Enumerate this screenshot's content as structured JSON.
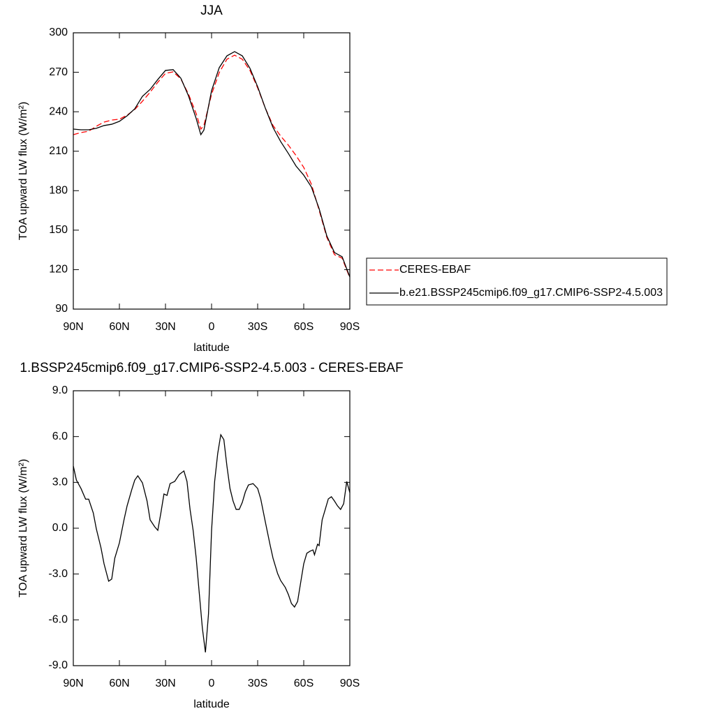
{
  "chart_data": [
    {
      "type": "line",
      "title": "JJA",
      "xlabel": "latitude",
      "ylabel": "TOA upward LW flux (W/m²)",
      "xlim": [
        90,
        -90
      ],
      "xticks": [
        {
          "value": 90,
          "label": "90N"
        },
        {
          "value": 60,
          "label": "60N"
        },
        {
          "value": 30,
          "label": "30N"
        },
        {
          "value": 0,
          "label": "0"
        },
        {
          "value": -30,
          "label": "30S"
        },
        {
          "value": -60,
          "label": "60S"
        },
        {
          "value": -90,
          "label": "90S"
        }
      ],
      "ylim": [
        90,
        300
      ],
      "yticks": [
        90,
        120,
        150,
        180,
        210,
        240,
        270,
        300
      ],
      "legend": "right",
      "x": [
        90,
        85,
        80,
        75,
        70,
        65,
        60,
        55,
        50,
        45,
        40,
        35,
        30,
        25,
        20,
        15,
        10,
        7,
        5,
        0,
        -5,
        -10,
        -15,
        -20,
        -25,
        -30,
        -35,
        -40,
        -45,
        -50,
        -55,
        -60,
        -65,
        -70,
        -75,
        -80,
        -85,
        -90
      ],
      "series": [
        {
          "name": "CERES-EBAF",
          "color": "#ff0000",
          "dashed": true,
          "values": [
            222.6,
            224.2,
            225.2,
            229,
            232.1,
            233.7,
            234.3,
            237.4,
            241.7,
            248,
            254.9,
            262.4,
            269.2,
            270.3,
            265,
            253.3,
            238.5,
            226.8,
            229.5,
            253.3,
            269.8,
            279.9,
            283,
            279.9,
            271.4,
            258.1,
            242.7,
            229.5,
            221.5,
            214.6,
            206.7,
            197.7,
            184.9,
            165.3,
            144.6,
            131.4,
            128.7,
            113.9
          ]
        },
        {
          "name": "b.e21.BSSP245cmip6.f09_g17.CMIP6-SSP2-4.5.003",
          "color": "#000000",
          "dashed": false,
          "values": [
            226.8,
            226.3,
            226.3,
            227.4,
            229.5,
            230.5,
            232.7,
            236.9,
            242.2,
            251.7,
            257,
            264.5,
            271.4,
            272,
            265.5,
            252,
            234.8,
            222.6,
            226,
            256,
            273.5,
            282.5,
            285.7,
            282.5,
            273,
            259,
            242.7,
            228,
            217.3,
            208.3,
            198.7,
            191.8,
            182.8,
            166.4,
            145.7,
            133,
            129.8,
            114.4
          ]
        }
      ]
    },
    {
      "type": "line",
      "title": "1.BSSP245cmip6.f09_g17.CMIP6-SSP2-4.5.003 - CERES-EBAF",
      "xlabel": "latitude",
      "ylabel": "TOA upward LW flux (W/m²)",
      "xlim": [
        90,
        -90
      ],
      "xticks": [
        {
          "value": 90,
          "label": "90N"
        },
        {
          "value": 60,
          "label": "60N"
        },
        {
          "value": 30,
          "label": "30N"
        },
        {
          "value": 0,
          "label": "0"
        },
        {
          "value": -30,
          "label": "30S"
        },
        {
          "value": -60,
          "label": "60S"
        },
        {
          "value": -90,
          "label": "90S"
        }
      ],
      "ylim": [
        -9,
        9
      ],
      "yticks": [
        {
          "value": -9,
          "label": "-9.0"
        },
        {
          "value": -6,
          "label": "-6.0"
        },
        {
          "value": -3,
          "label": "-3.0"
        },
        {
          "value": 0,
          "label": "0.0"
        },
        {
          "value": 3,
          "label": "3.0"
        },
        {
          "value": 6,
          "label": "6.0"
        },
        {
          "value": 9,
          "label": "9.0"
        }
      ],
      "color": "#000000",
      "x": [
        90,
        88,
        85,
        82,
        80,
        77,
        75,
        72,
        70,
        67,
        65,
        63,
        60,
        57,
        55,
        52,
        50,
        48,
        45,
        42,
        40,
        37,
        35,
        33,
        31,
        29,
        27,
        24,
        21,
        18,
        16,
        14,
        12,
        10,
        8,
        6,
        4,
        2,
        0,
        -2,
        -4,
        -6,
        -8,
        -10,
        -12,
        -14,
        -16,
        -18,
        -20,
        -22,
        -24,
        -27,
        -30,
        -32,
        -35,
        -38,
        -40,
        -43,
        -45,
        -48,
        -50,
        -52,
        -54,
        -56,
        -58,
        -60,
        -62,
        -64,
        -66,
        -67,
        -69,
        -70,
        -72,
        -74,
        -76,
        -78,
        -80,
        -82,
        -84,
        -86,
        -88,
        -90
      ],
      "values": [
        4.07,
        3.15,
        2.6,
        1.9,
        1.9,
        1.0,
        -0.05,
        -1.28,
        -2.33,
        -3.47,
        -3.33,
        -1.96,
        -0.96,
        0.55,
        1.46,
        2.51,
        3.15,
        3.43,
        2.97,
        1.78,
        0.55,
        0.09,
        -0.14,
        1.0,
        2.24,
        2.15,
        2.92,
        3.06,
        3.52,
        3.75,
        3.06,
        1.23,
        -0.14,
        -1.96,
        -4.25,
        -6.53,
        -8.13,
        -5.62,
        -0.14,
        3.06,
        4.89,
        6.12,
        5.8,
        4.07,
        2.6,
        1.78,
        1.23,
        1.23,
        1.69,
        2.38,
        2.83,
        2.92,
        2.6,
        1.92,
        0.41,
        -1.05,
        -1.96,
        -2.97,
        -3.43,
        -3.88,
        -4.34,
        -4.93,
        -5.16,
        -4.8,
        -3.56,
        -2.33,
        -1.64,
        -1.51,
        -1.42,
        -1.74,
        -1.05,
        -1.14,
        0.55,
        1.23,
        1.92,
        2.06,
        1.78,
        1.46,
        1.23,
        1.6,
        3.06,
        2.33
      ]
    }
  ]
}
